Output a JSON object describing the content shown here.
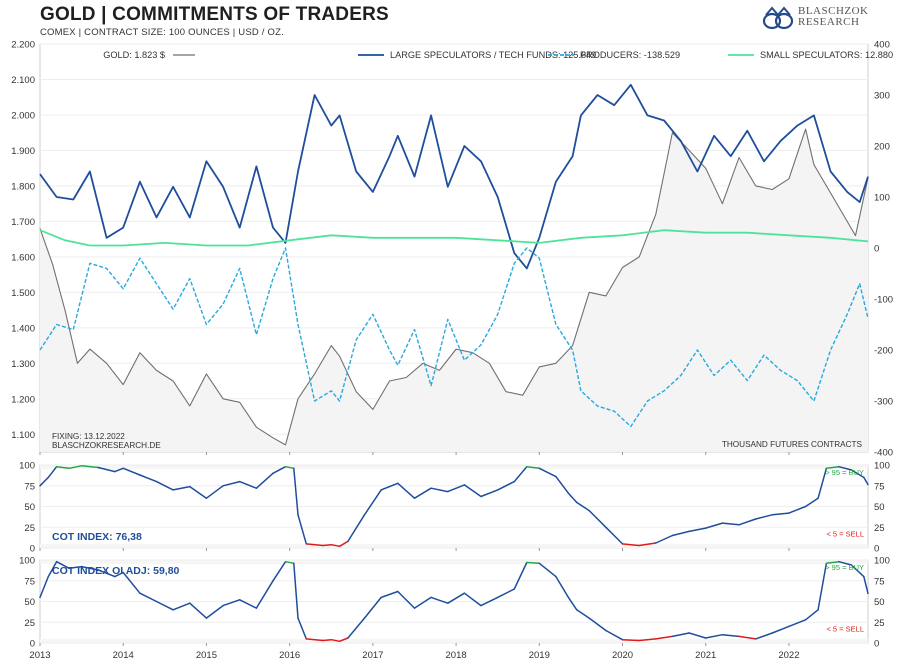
{
  "header": {
    "title": "GOLD | COMMITMENTS OF TRADERS",
    "subtitle": "COMEX | CONTRACT SIZE: 100 OUNCES | USD / OZ.",
    "logo_line1": "BLASCHZOK",
    "logo_line2": "RESEARCH"
  },
  "colors": {
    "gold": "#707070",
    "large_spec": "#1f4e9c",
    "producers": "#27a9df",
    "small_spec": "#4fe39a",
    "buy": "#27a64a",
    "sell": "#e01b1b",
    "cot_label": "#1f4e9c"
  },
  "chart_data": [
    {
      "type": "line",
      "panel": "main",
      "fixing": "FIXING: 13.12.2022",
      "source": "BLASCHZOKRESEARCH.DE",
      "right_axis_label": "THOUSAND FUTURES CONTRACTS",
      "x_range": [
        2013.0,
        2022.95
      ],
      "x_ticks": [
        "2013",
        "2014",
        "2015",
        "2016",
        "2017",
        "2018",
        "2019",
        "2020",
        "2021",
        "2022"
      ],
      "ylim_left": [
        1.05,
        2.2
      ],
      "yticks_left": [
        "1.100",
        "1.200",
        "1.300",
        "1.400",
        "1.500",
        "1.600",
        "1.700",
        "1.800",
        "1.900",
        "2.000",
        "2.100",
        "2.200"
      ],
      "ylim_right": [
        -400,
        400
      ],
      "yticks_right": [
        "-400",
        "-300",
        "-200",
        "-100",
        "0",
        "100",
        "200",
        "300",
        "400"
      ],
      "series": [
        {
          "name": "GOLD: 1.823 $",
          "axis": "left",
          "style": "solid",
          "color_key": "gold",
          "x": [
            2013.0,
            2013.15,
            2013.3,
            2013.45,
            2013.6,
            2013.8,
            2014.0,
            2014.2,
            2014.4,
            2014.6,
            2014.8,
            2015.0,
            2015.2,
            2015.4,
            2015.6,
            2015.8,
            2015.95,
            2016.1,
            2016.3,
            2016.5,
            2016.6,
            2016.8,
            2017.0,
            2017.2,
            2017.4,
            2017.6,
            2017.8,
            2018.0,
            2018.2,
            2018.4,
            2018.6,
            2018.8,
            2019.0,
            2019.2,
            2019.4,
            2019.6,
            2019.8,
            2020.0,
            2020.2,
            2020.4,
            2020.6,
            2020.8,
            2021.0,
            2021.2,
            2021.4,
            2021.6,
            2021.8,
            2022.0,
            2022.2,
            2022.3,
            2022.5,
            2022.7,
            2022.8,
            2022.95
          ],
          "values": [
            1.68,
            1.58,
            1.45,
            1.3,
            1.34,
            1.3,
            1.24,
            1.33,
            1.28,
            1.25,
            1.18,
            1.27,
            1.2,
            1.19,
            1.12,
            1.09,
            1.07,
            1.2,
            1.27,
            1.35,
            1.32,
            1.22,
            1.17,
            1.25,
            1.26,
            1.3,
            1.28,
            1.34,
            1.33,
            1.3,
            1.22,
            1.21,
            1.29,
            1.3,
            1.35,
            1.5,
            1.49,
            1.57,
            1.6,
            1.72,
            1.95,
            1.9,
            1.85,
            1.75,
            1.88,
            1.8,
            1.79,
            1.82,
            1.96,
            1.86,
            1.78,
            1.7,
            1.66,
            1.823
          ]
        },
        {
          "name": "LARGE SPECULATORS / TECH FUNDS: 125.649",
          "axis": "right",
          "style": "solid",
          "color_key": "large_spec",
          "x": [
            2013.0,
            2013.2,
            2013.4,
            2013.6,
            2013.8,
            2014.0,
            2014.2,
            2014.4,
            2014.6,
            2014.8,
            2015.0,
            2015.2,
            2015.4,
            2015.6,
            2015.8,
            2015.95,
            2016.1,
            2016.3,
            2016.5,
            2016.6,
            2016.8,
            2017.0,
            2017.2,
            2017.3,
            2017.5,
            2017.7,
            2017.9,
            2018.1,
            2018.3,
            2018.5,
            2018.7,
            2018.85,
            2019.0,
            2019.2,
            2019.4,
            2019.5,
            2019.7,
            2019.9,
            2020.1,
            2020.3,
            2020.5,
            2020.7,
            2020.9,
            2021.1,
            2021.3,
            2021.5,
            2021.7,
            2021.9,
            2022.1,
            2022.3,
            2022.5,
            2022.7,
            2022.85,
            2022.95
          ],
          "values": [
            145,
            100,
            95,
            150,
            20,
            40,
            130,
            60,
            120,
            60,
            170,
            120,
            40,
            160,
            40,
            10,
            150,
            300,
            240,
            260,
            150,
            110,
            180,
            220,
            140,
            260,
            120,
            200,
            170,
            100,
            -10,
            -40,
            20,
            130,
            180,
            260,
            300,
            280,
            320,
            260,
            250,
            210,
            150,
            220,
            180,
            230,
            170,
            210,
            240,
            260,
            150,
            110,
            90,
            140
          ]
        },
        {
          "name": "PRODUCERS: -138.529",
          "axis": "right",
          "style": "dashed",
          "color_key": "producers",
          "x": [
            2013.0,
            2013.2,
            2013.4,
            2013.6,
            2013.8,
            2014.0,
            2014.2,
            2014.4,
            2014.6,
            2014.8,
            2015.0,
            2015.2,
            2015.4,
            2015.6,
            2015.8,
            2015.95,
            2016.1,
            2016.3,
            2016.5,
            2016.6,
            2016.8,
            2017.0,
            2017.2,
            2017.3,
            2017.5,
            2017.7,
            2017.9,
            2018.1,
            2018.3,
            2018.5,
            2018.7,
            2018.85,
            2019.0,
            2019.2,
            2019.4,
            2019.5,
            2019.7,
            2019.9,
            2020.1,
            2020.3,
            2020.5,
            2020.7,
            2020.9,
            2021.1,
            2021.3,
            2021.5,
            2021.7,
            2021.9,
            2022.1,
            2022.3,
            2022.5,
            2022.7,
            2022.85,
            2022.95
          ],
          "values": [
            -200,
            -150,
            -160,
            -30,
            -40,
            -80,
            -20,
            -70,
            -120,
            -60,
            -150,
            -110,
            -40,
            -170,
            -60,
            0,
            -150,
            -300,
            -280,
            -300,
            -180,
            -130,
            -200,
            -230,
            -160,
            -270,
            -140,
            -220,
            -190,
            -130,
            -30,
            0,
            -20,
            -150,
            -200,
            -280,
            -310,
            -320,
            -350,
            -300,
            -280,
            -250,
            -200,
            -250,
            -220,
            -260,
            -210,
            -240,
            -260,
            -300,
            -200,
            -130,
            -70,
            -138
          ]
        },
        {
          "name": "SMALL SPECULATORS: 12.880",
          "axis": "right",
          "style": "solid",
          "color_key": "small_spec",
          "x": [
            2013.0,
            2013.3,
            2013.6,
            2014.0,
            2014.5,
            2015.0,
            2015.5,
            2016.0,
            2016.5,
            2017.0,
            2017.5,
            2018.0,
            2018.5,
            2019.0,
            2019.5,
            2020.0,
            2020.5,
            2021.0,
            2021.5,
            2022.0,
            2022.5,
            2022.95
          ],
          "values": [
            35,
            15,
            5,
            5,
            10,
            5,
            5,
            15,
            25,
            20,
            20,
            20,
            15,
            10,
            20,
            25,
            35,
            30,
            30,
            25,
            20,
            13
          ]
        }
      ]
    },
    {
      "type": "line",
      "panel": "cot_index",
      "label": "COT INDEX: 76,38",
      "buy_label": "> 95 = BUY",
      "sell_label": "< 5 = SELL",
      "ylim": [
        0,
        100
      ],
      "yticks": [
        "0",
        "25",
        "50",
        "75",
        "100"
      ],
      "x": [
        2013.0,
        2013.1,
        2013.2,
        2013.35,
        2013.5,
        2013.7,
        2013.9,
        2014.0,
        2014.2,
        2014.4,
        2014.6,
        2014.8,
        2015.0,
        2015.2,
        2015.4,
        2015.6,
        2015.8,
        2015.95,
        2016.05,
        2016.1,
        2016.2,
        2016.4,
        2016.5,
        2016.6,
        2016.7,
        2016.9,
        2017.1,
        2017.3,
        2017.5,
        2017.7,
        2017.9,
        2018.1,
        2018.3,
        2018.5,
        2018.7,
        2018.85,
        2019.0,
        2019.2,
        2019.35,
        2019.45,
        2019.6,
        2019.8,
        2020.0,
        2020.2,
        2020.4,
        2020.6,
        2020.8,
        2021.0,
        2021.2,
        2021.4,
        2021.6,
        2021.8,
        2022.0,
        2022.2,
        2022.35,
        2022.45,
        2022.6,
        2022.75,
        2022.9,
        2022.95
      ],
      "values": [
        75,
        85,
        98,
        96,
        99,
        97,
        92,
        96,
        88,
        80,
        70,
        74,
        60,
        75,
        80,
        72,
        90,
        98,
        96,
        40,
        5,
        3,
        4,
        2,
        8,
        40,
        70,
        78,
        60,
        72,
        68,
        76,
        62,
        70,
        80,
        98,
        96,
        86,
        66,
        55,
        45,
        25,
        5,
        3,
        6,
        15,
        20,
        24,
        30,
        28,
        35,
        40,
        42,
        50,
        60,
        96,
        98,
        94,
        85,
        76.38
      ]
    },
    {
      "type": "line",
      "panel": "cot_index_oi_adj",
      "label": "COT INDEX OI ADJ: 59,80",
      "buy_label": "> 95 = BUY",
      "sell_label": "< 5 = SELL",
      "ylim": [
        0,
        100
      ],
      "yticks": [
        "0",
        "25",
        "50",
        "75",
        "100"
      ],
      "x": [
        2013.0,
        2013.1,
        2013.2,
        2013.35,
        2013.5,
        2013.7,
        2013.9,
        2014.0,
        2014.2,
        2014.4,
        2014.6,
        2014.8,
        2015.0,
        2015.2,
        2015.4,
        2015.6,
        2015.8,
        2015.95,
        2016.05,
        2016.1,
        2016.2,
        2016.4,
        2016.5,
        2016.6,
        2016.7,
        2016.9,
        2017.1,
        2017.3,
        2017.5,
        2017.7,
        2017.9,
        2018.1,
        2018.3,
        2018.5,
        2018.7,
        2018.85,
        2019.0,
        2019.2,
        2019.35,
        2019.45,
        2019.6,
        2019.8,
        2020.0,
        2020.2,
        2020.4,
        2020.6,
        2020.8,
        2021.0,
        2021.2,
        2021.4,
        2021.6,
        2021.8,
        2022.0,
        2022.2,
        2022.35,
        2022.45,
        2022.6,
        2022.75,
        2022.9,
        2022.95
      ],
      "values": [
        55,
        80,
        98,
        90,
        92,
        88,
        80,
        85,
        60,
        50,
        40,
        48,
        30,
        45,
        52,
        42,
        75,
        98,
        96,
        30,
        5,
        3,
        4,
        2,
        6,
        30,
        55,
        62,
        42,
        55,
        48,
        60,
        45,
        55,
        65,
        97,
        96,
        80,
        55,
        40,
        30,
        15,
        4,
        3,
        5,
        8,
        12,
        6,
        10,
        8,
        5,
        12,
        20,
        28,
        40,
        96,
        98,
        94,
        80,
        59.8
      ]
    }
  ]
}
